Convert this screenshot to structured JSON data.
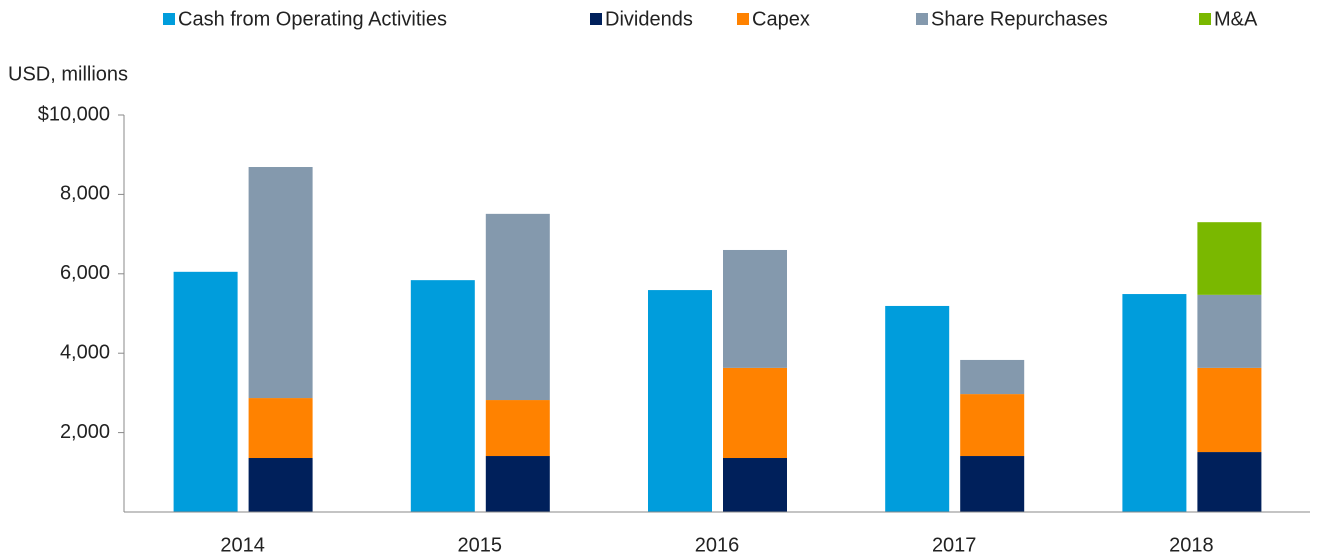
{
  "chart_data": {
    "type": "bar",
    "y_label": "USD, millions",
    "categories": [
      "2014",
      "2015",
      "2016",
      "2017",
      "2018"
    ],
    "series": [
      {
        "name": "Cash from Operating Activities",
        "color": "#009ddc",
        "values": [
          6050,
          5840,
          5590,
          5190,
          5490
        ]
      },
      {
        "name": "Dividends",
        "color": "#00205b",
        "values": [
          1360,
          1410,
          1360,
          1410,
          1510
        ]
      },
      {
        "name": "Capex",
        "color": "#ff8200",
        "values": [
          1510,
          1410,
          2270,
          1560,
          2120
        ]
      },
      {
        "name": "Share Repurchases",
        "color": "#8499ad",
        "values": [
          5820,
          4690,
          2970,
          860,
          1840
        ]
      },
      {
        "name": "M&A",
        "color": "#7ab800",
        "values": [
          null,
          null,
          null,
          null,
          1830
        ]
      }
    ],
    "ylim": [
      0,
      10000
    ],
    "yticks": [
      {
        "value": 2000,
        "label": "2,000"
      },
      {
        "value": 4000,
        "label": "4,000"
      },
      {
        "value": 6000,
        "label": "6,000"
      },
      {
        "value": 8000,
        "label": "8,000"
      },
      {
        "value": 10000,
        "label": "$10,000"
      }
    ],
    "legend": "top"
  }
}
